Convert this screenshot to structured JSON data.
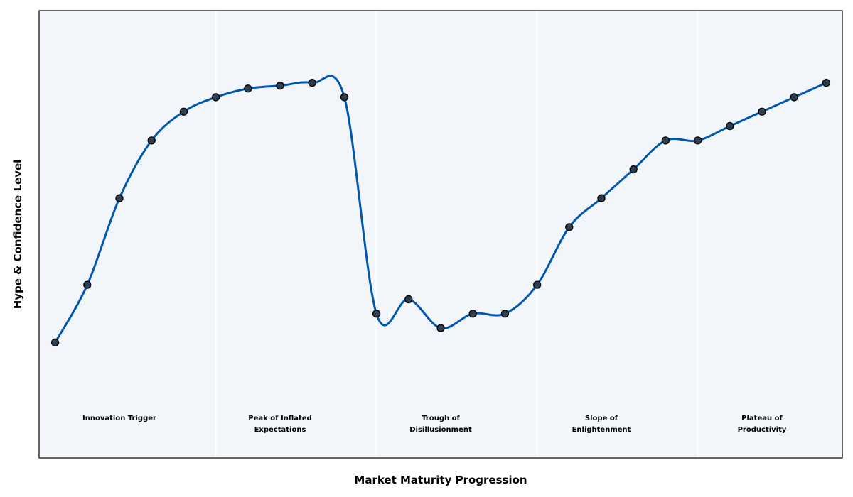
{
  "chart_data": {
    "type": "line",
    "x_label": "Market Maturity Progression",
    "y_label": "Hype & Confidence Level",
    "x": [
      0,
      1,
      2,
      3,
      4,
      5,
      6,
      7,
      8,
      9,
      10,
      11,
      12,
      13,
      14,
      15,
      16,
      17,
      18,
      19,
      20,
      21,
      22,
      23,
      24
    ],
    "series": [
      {
        "color": "#0057b0",
        "marker_color": "#2c3e50",
        "values": [
          8,
          12,
          18,
          22,
          24,
          25,
          25.6,
          25.8,
          26,
          25,
          10,
          11,
          9,
          10,
          10,
          12,
          16,
          18,
          20,
          22,
          22,
          23,
          24,
          25,
          26
        ]
      }
    ],
    "xlim": [
      -0.5,
      24.5
    ],
    "ylim": [
      0,
      31
    ],
    "phase_boundaries": [
      5,
      10,
      15,
      20
    ],
    "phases": [
      "Innovation Trigger",
      "Peak of Inflated\nExpectations",
      "Trough of\nDisillusionment",
      "Slope of\nEnlightenment",
      "Plateau of\nProductivity"
    ],
    "background": "#f2f6fa"
  }
}
